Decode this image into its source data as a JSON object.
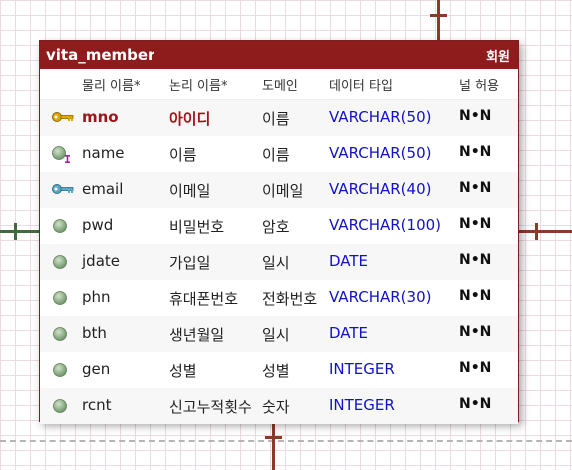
{
  "entity": {
    "physical_name": "vita_member",
    "logical_name": "회원",
    "headers": {
      "physical": "물리 이름*",
      "logical": "논리 이름*",
      "domain": "도메인",
      "datatype": "데이터 타입",
      "nullable": "널 허용"
    },
    "columns": [
      {
        "physical": "mno",
        "logical": "아이디",
        "domain": "이름",
        "datatype": "VARCHAR(50)",
        "nullable": "N•N",
        "icon": "primary-key-icon"
      },
      {
        "physical": "name",
        "logical": "이름",
        "domain": "이름",
        "datatype": "VARCHAR(50)",
        "nullable": "N•N",
        "icon": "index-column-icon"
      },
      {
        "physical": "email",
        "logical": "이메일",
        "domain": "이메일",
        "datatype": "VARCHAR(40)",
        "nullable": "N•N",
        "icon": "alternate-key-icon"
      },
      {
        "physical": "pwd",
        "logical": "비밀번호",
        "domain": "암호",
        "datatype": "VARCHAR(100)",
        "nullable": "N•N",
        "icon": "column-icon"
      },
      {
        "physical": "jdate",
        "logical": "가입일",
        "domain": "일시",
        "datatype": "DATE",
        "nullable": "N•N",
        "icon": "column-icon"
      },
      {
        "physical": "phn",
        "logical": "휴대폰번호",
        "domain": "전화번호",
        "datatype": "VARCHAR(30)",
        "nullable": "N•N",
        "icon": "column-icon"
      },
      {
        "physical": "bth",
        "logical": "생년월일",
        "domain": "일시",
        "datatype": "DATE",
        "nullable": "N•N",
        "icon": "column-icon"
      },
      {
        "physical": "gen",
        "logical": "성별",
        "domain": "성별",
        "datatype": "INTEGER",
        "nullable": "N•N",
        "icon": "column-icon"
      },
      {
        "physical": "rcnt",
        "logical": "신고누적횟수",
        "domain": "숫자",
        "datatype": "INTEGER",
        "nullable": "N•N",
        "icon": "column-icon"
      }
    ]
  },
  "colors": {
    "header_bg": "#8e1c1c",
    "primary_key_text": "#a0141b",
    "datatype_text": "#1111c8",
    "relationship_line": "#8b3a2a"
  }
}
